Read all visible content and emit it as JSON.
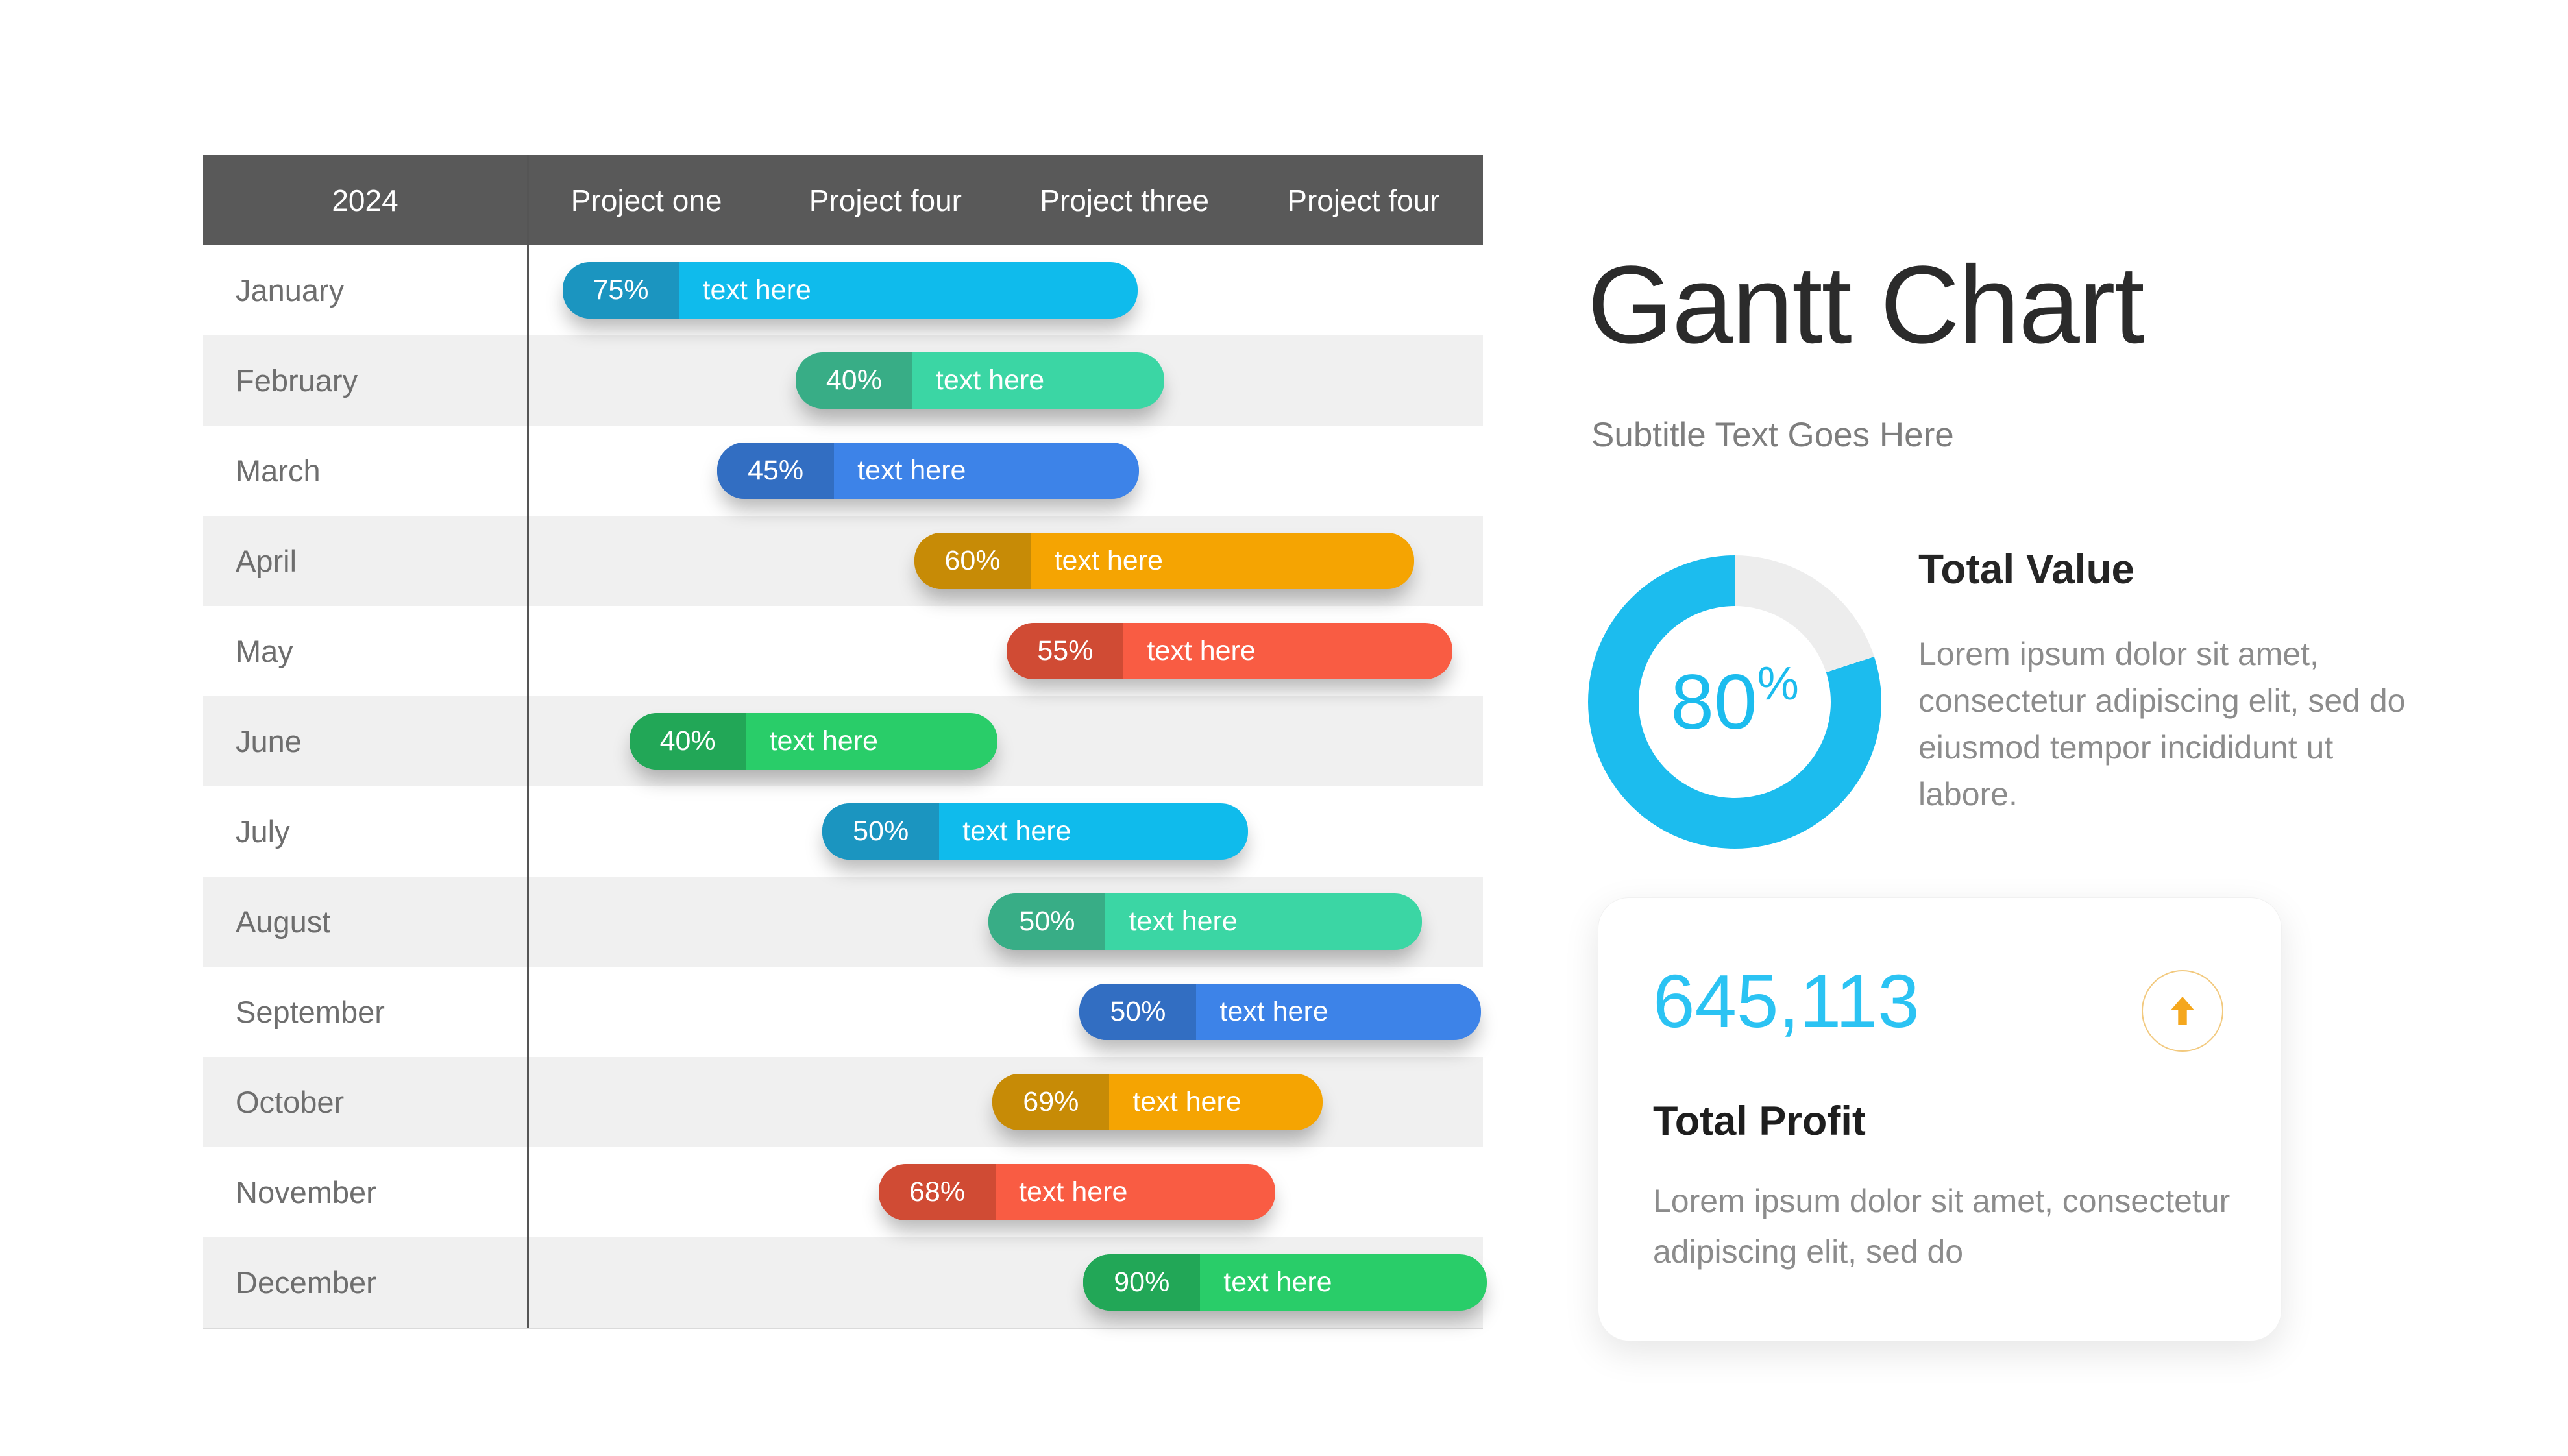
{
  "chart_data": {
    "type": "bar",
    "subtype": "gantt-timeline",
    "title": "Gantt Chart",
    "year": "2024",
    "columns": [
      "Project one",
      "Project four",
      "Project three",
      "Project four"
    ],
    "timeline_unit": "fraction of project-columns axis (0 = axis start after month column, 1 = axis end)",
    "bars": [
      {
        "month": "January",
        "percent": 75,
        "percent_label": "75%",
        "label": "text here",
        "color": "cyan",
        "start": 0.037,
        "end": 0.639
      },
      {
        "month": "February",
        "percent": 40,
        "percent_label": "40%",
        "label": "text here",
        "color": "mint",
        "start": 0.281,
        "end": 0.667
      },
      {
        "month": "March",
        "percent": 45,
        "percent_label": "45%",
        "label": "text here",
        "color": "blue",
        "start": 0.199,
        "end": 0.64
      },
      {
        "month": "April",
        "percent": 60,
        "percent_label": "60%",
        "label": "text here",
        "color": "amber",
        "start": 0.405,
        "end": 0.928
      },
      {
        "month": "May",
        "percent": 55,
        "percent_label": "55%",
        "label": "text here",
        "color": "red",
        "start": 0.502,
        "end": 0.968
      },
      {
        "month": "June",
        "percent": 40,
        "percent_label": "40%",
        "label": "text here",
        "color": "green",
        "start": 0.107,
        "end": 0.492
      },
      {
        "month": "July",
        "percent": 50,
        "percent_label": "50%",
        "label": "text here",
        "color": "cyan",
        "start": 0.309,
        "end": 0.754
      },
      {
        "month": "August",
        "percent": 50,
        "percent_label": "50%",
        "label": "text here",
        "color": "mint",
        "start": 0.483,
        "end": 0.936
      },
      {
        "month": "September",
        "percent": 50,
        "percent_label": "50%",
        "label": "text here",
        "color": "blue",
        "start": 0.578,
        "end": 0.998
      },
      {
        "month": "October",
        "percent": 69,
        "percent_label": "69%",
        "label": "text here",
        "color": "amber",
        "start": 0.487,
        "end": 0.832
      },
      {
        "month": "November",
        "percent": 68,
        "percent_label": "68%",
        "label": "text here",
        "color": "red",
        "start": 0.368,
        "end": 0.783
      },
      {
        "month": "December",
        "percent": 90,
        "percent_label": "90%",
        "label": "text here",
        "color": "green",
        "start": 0.582,
        "end": 1.004
      }
    ],
    "donut_percent": 80,
    "total_profit_value": "645,113"
  },
  "table": {
    "year_header": "2024"
  },
  "panel": {
    "title": "Gantt Chart",
    "subtitle": "Subtitle Text Goes Here",
    "donut_value": "80",
    "donut_unit": "%",
    "total_value_heading": "Total Value",
    "total_value_body": "Lorem ipsum dolor sit amet, consectetur adipiscing elit, sed do eiusmod tempor incididunt ut labore.",
    "profit_number": "645,113",
    "profit_heading": "Total Profit",
    "profit_body": "Lorem ipsum dolor sit amet, consectetur adipiscing elit, sed do",
    "arrow_icon": "up-arrow-icon"
  },
  "colors": {
    "header_bg": "#595959",
    "row_alt": "#f0f0f0",
    "divider": "#555555",
    "donut_track": "#ededed",
    "accent_cyan": "#1cbcee",
    "accent_amber": "#f5a71d",
    "arrow_ring": "#f2c97e",
    "cyan": {
      "main": "#0fbbec",
      "dark": "#1b95c0"
    },
    "mint": {
      "main": "#3bd6a4",
      "dark": "#38ad86"
    },
    "blue": {
      "main": "#3d83e8",
      "dark": "#326ec2"
    },
    "amber": {
      "main": "#f5a402",
      "dark": "#c78b06"
    },
    "red": {
      "main": "#f95c43",
      "dark": "#d04b34"
    },
    "green": {
      "main": "#29cd69",
      "dark": "#22a757"
    }
  }
}
